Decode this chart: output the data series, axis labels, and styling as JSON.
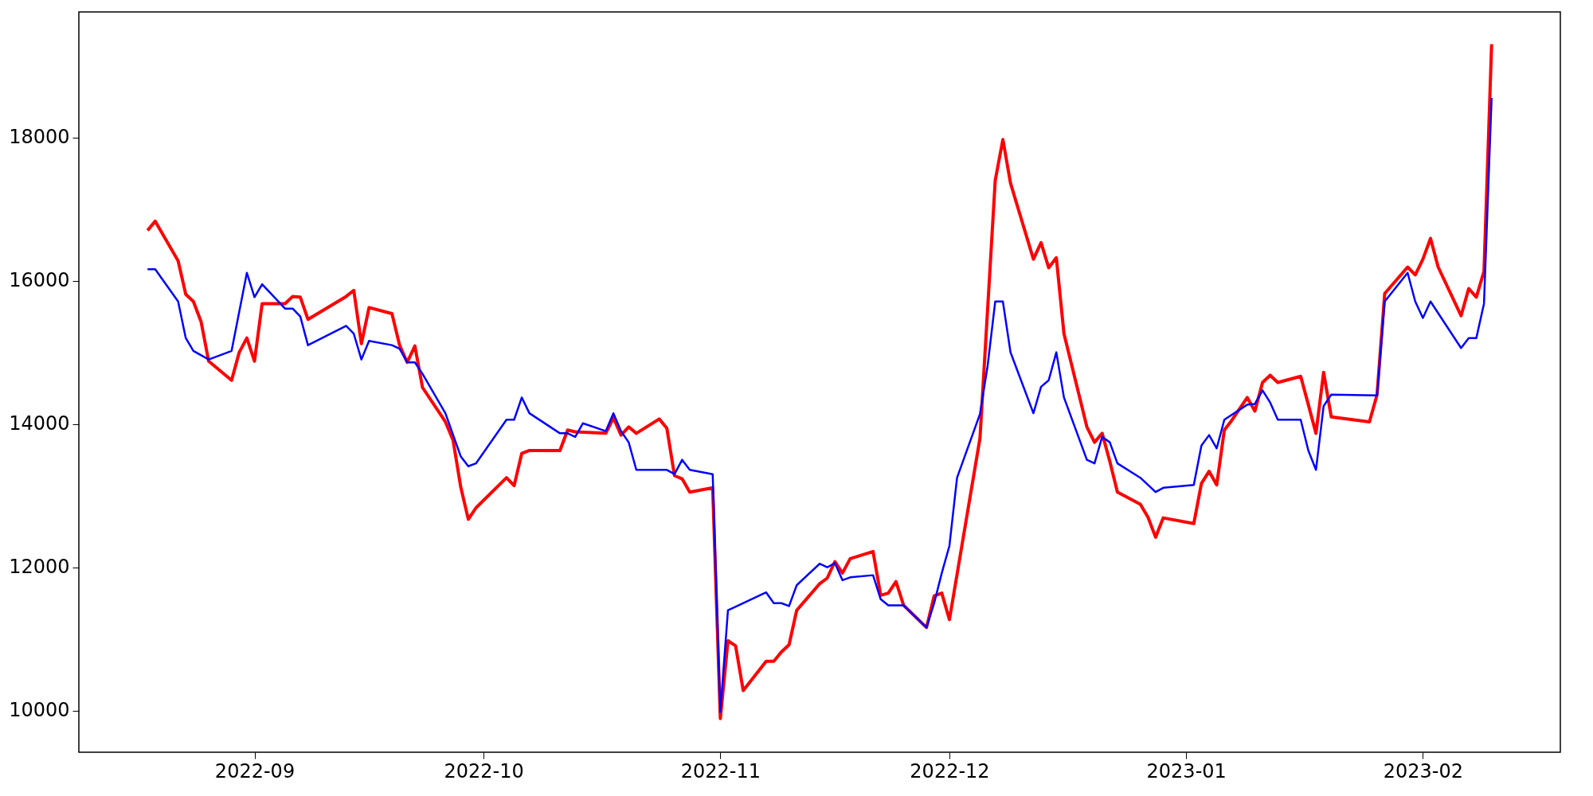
{
  "chart_data": {
    "type": "line",
    "xlim": [
      "2022-08-09",
      "2023-02-19"
    ],
    "xticks": [
      "2022-09",
      "2022-10",
      "2022-11",
      "2022-12",
      "2023-01",
      "2023-02"
    ],
    "ylim": [
      9420,
      19750
    ],
    "yticks": [
      10000,
      12000,
      14000,
      16000,
      18000
    ],
    "grid": false,
    "marker": "none",
    "line_style": "solid",
    "series": [
      {
        "color": "#ff0000",
        "x": [
          "2022-08-18",
          "2022-08-19",
          "2022-08-22",
          "2022-08-23",
          "2022-08-24",
          "2022-08-25",
          "2022-08-26",
          "2022-08-29",
          "2022-08-30",
          "2022-08-31",
          "2022-09-01",
          "2022-09-02",
          "2022-09-05",
          "2022-09-06",
          "2022-09-07",
          "2022-09-08",
          "2022-09-13",
          "2022-09-14",
          "2022-09-15",
          "2022-09-16",
          "2022-09-19",
          "2022-09-20",
          "2022-09-21",
          "2022-09-22",
          "2022-09-23",
          "2022-09-26",
          "2022-09-27",
          "2022-09-28",
          "2022-09-29",
          "2022-09-30",
          "2022-10-04",
          "2022-10-05",
          "2022-10-06",
          "2022-10-07",
          "2022-10-11",
          "2022-10-12",
          "2022-10-13",
          "2022-10-17",
          "2022-10-18",
          "2022-10-19",
          "2022-10-20",
          "2022-10-21",
          "2022-10-24",
          "2022-10-25",
          "2022-10-26",
          "2022-10-27",
          "2022-10-28",
          "2022-10-31",
          "2022-11-01",
          "2022-11-02",
          "2022-11-03",
          "2022-11-04",
          "2022-11-07",
          "2022-11-08",
          "2022-11-09",
          "2022-11-10",
          "2022-11-11",
          "2022-11-14",
          "2022-11-15",
          "2022-11-16",
          "2022-11-17",
          "2022-11-18",
          "2022-11-21",
          "2022-11-22",
          "2022-11-23",
          "2022-11-24",
          "2022-11-25",
          "2022-11-28",
          "2022-11-29",
          "2022-11-30",
          "2022-12-01",
          "2022-12-05",
          "2022-12-07",
          "2022-12-08",
          "2022-12-09",
          "2022-12-12",
          "2022-12-13",
          "2022-12-14",
          "2022-12-15",
          "2022-12-16",
          "2022-12-19",
          "2022-12-20",
          "2022-12-21",
          "2022-12-22",
          "2022-12-23",
          "2022-12-26",
          "2022-12-27",
          "2022-12-28",
          "2022-12-29",
          "2023-01-02",
          "2023-01-03",
          "2023-01-04",
          "2023-01-05",
          "2023-01-06",
          "2023-01-07",
          "2023-01-09",
          "2023-01-10",
          "2023-01-11",
          "2023-01-12",
          "2023-01-13",
          "2023-01-16",
          "2023-01-17",
          "2023-01-18",
          "2023-01-19",
          "2023-01-20",
          "2023-01-25",
          "2023-01-26",
          "2023-01-27",
          "2023-01-30",
          "2023-01-31",
          "2023-02-01",
          "2023-02-02",
          "2023-02-03",
          "2023-02-06",
          "2023-02-07",
          "2023-02-08",
          "2023-02-09",
          "2023-02-10"
        ],
        "values": [
          16700,
          16830,
          16276,
          15810,
          15710,
          15430,
          14876,
          14610,
          15000,
          15200,
          14876,
          15680,
          15680,
          15780,
          15770,
          15460,
          15780,
          15865,
          15120,
          15625,
          15540,
          15100,
          14860,
          15090,
          14510,
          14030,
          13775,
          13125,
          12670,
          12830,
          13250,
          13140,
          13590,
          13630,
          13630,
          13915,
          13890,
          13870,
          14085,
          13845,
          13960,
          13870,
          14070,
          13940,
          13280,
          13235,
          13050,
          13110,
          9890,
          10975,
          10905,
          10280,
          10690,
          10690,
          10820,
          10920,
          11400,
          11770,
          11850,
          12080,
          11920,
          12120,
          12220,
          11610,
          11640,
          11800,
          11470,
          11160,
          11600,
          11640,
          11270,
          13800,
          17400,
          17970,
          17360,
          16300,
          16530,
          16180,
          16320,
          15260,
          13960,
          13745,
          13870,
          13480,
          13050,
          12880,
          12700,
          12420,
          12690,
          12610,
          13170,
          13340,
          13150,
          13915,
          14055,
          14370,
          14180,
          14580,
          14680,
          14580,
          14665,
          14270,
          13870,
          14720,
          14100,
          14030,
          14410,
          15820,
          16190,
          16080,
          16300,
          16590,
          16190,
          15510,
          15890,
          15770,
          16130,
          19300
        ]
      },
      {
        "color": "#0000ff",
        "x": [
          "2022-08-18",
          "2022-08-19",
          "2022-08-22",
          "2022-08-23",
          "2022-08-24",
          "2022-08-26",
          "2022-08-29",
          "2022-08-31",
          "2022-09-01",
          "2022-09-02",
          "2022-09-05",
          "2022-09-06",
          "2022-09-07",
          "2022-09-08",
          "2022-09-13",
          "2022-09-14",
          "2022-09-15",
          "2022-09-16",
          "2022-09-19",
          "2022-09-20",
          "2022-09-21",
          "2022-09-22",
          "2022-09-23",
          "2022-09-26",
          "2022-09-28",
          "2022-09-29",
          "2022-09-30",
          "2022-10-04",
          "2022-10-05",
          "2022-10-06",
          "2022-10-07",
          "2022-10-11",
          "2022-10-12",
          "2022-10-13",
          "2022-10-14",
          "2022-10-17",
          "2022-10-18",
          "2022-10-19",
          "2022-10-20",
          "2022-10-21",
          "2022-10-25",
          "2022-10-26",
          "2022-10-27",
          "2022-10-28",
          "2022-10-31",
          "2022-11-01",
          "2022-11-02",
          "2022-11-07",
          "2022-11-08",
          "2022-11-09",
          "2022-11-10",
          "2022-11-11",
          "2022-11-14",
          "2022-11-15",
          "2022-11-16",
          "2022-11-17",
          "2022-11-18",
          "2022-11-21",
          "2022-11-22",
          "2022-11-23",
          "2022-11-25",
          "2022-11-28",
          "2022-11-29",
          "2022-11-30",
          "2022-12-01",
          "2022-12-02",
          "2022-12-05",
          "2022-12-06",
          "2022-12-07",
          "2022-12-08",
          "2022-12-09",
          "2022-12-12",
          "2022-12-13",
          "2022-12-14",
          "2022-12-15",
          "2022-12-16",
          "2022-12-19",
          "2022-12-20",
          "2022-12-21",
          "2022-12-22",
          "2022-12-23",
          "2022-12-26",
          "2022-12-28",
          "2022-12-29",
          "2023-01-02",
          "2023-01-03",
          "2023-01-04",
          "2023-01-05",
          "2023-01-06",
          "2023-01-09",
          "2023-01-10",
          "2023-01-11",
          "2023-01-12",
          "2023-01-13",
          "2023-01-16",
          "2023-01-17",
          "2023-01-18",
          "2023-01-19",
          "2023-01-20",
          "2023-01-26",
          "2023-01-27",
          "2023-01-30",
          "2023-01-31",
          "2023-02-01",
          "2023-02-02",
          "2023-02-06",
          "2023-02-07",
          "2023-02-08",
          "2023-02-09",
          "2023-02-10"
        ],
        "values": [
          16160,
          16160,
          15710,
          15200,
          15020,
          14900,
          15020,
          16110,
          15770,
          15950,
          15610,
          15610,
          15500,
          15100,
          15370,
          15260,
          14900,
          15160,
          15100,
          15050,
          14860,
          14860,
          14700,
          14150,
          13550,
          13410,
          13450,
          14060,
          14060,
          14370,
          14150,
          13870,
          13870,
          13820,
          14010,
          13900,
          14150,
          13900,
          13745,
          13360,
          13360,
          13300,
          13500,
          13360,
          13300,
          9985,
          11400,
          11650,
          11500,
          11500,
          11460,
          11750,
          12050,
          12000,
          12060,
          11820,
          11860,
          11890,
          11555,
          11470,
          11470,
          11160,
          11500,
          11920,
          12300,
          13250,
          14140,
          14810,
          15710,
          15710,
          15000,
          14150,
          14520,
          14610,
          15000,
          14370,
          13500,
          13450,
          13820,
          13745,
          13450,
          13250,
          13050,
          13110,
          13150,
          13700,
          13845,
          13660,
          14060,
          14270,
          14280,
          14470,
          14300,
          14060,
          14060,
          13630,
          13360,
          14250,
          14410,
          14400,
          15710,
          16110,
          15710,
          15480,
          15710,
          15060,
          15200,
          15200,
          15680,
          18550
        ]
      }
    ]
  }
}
